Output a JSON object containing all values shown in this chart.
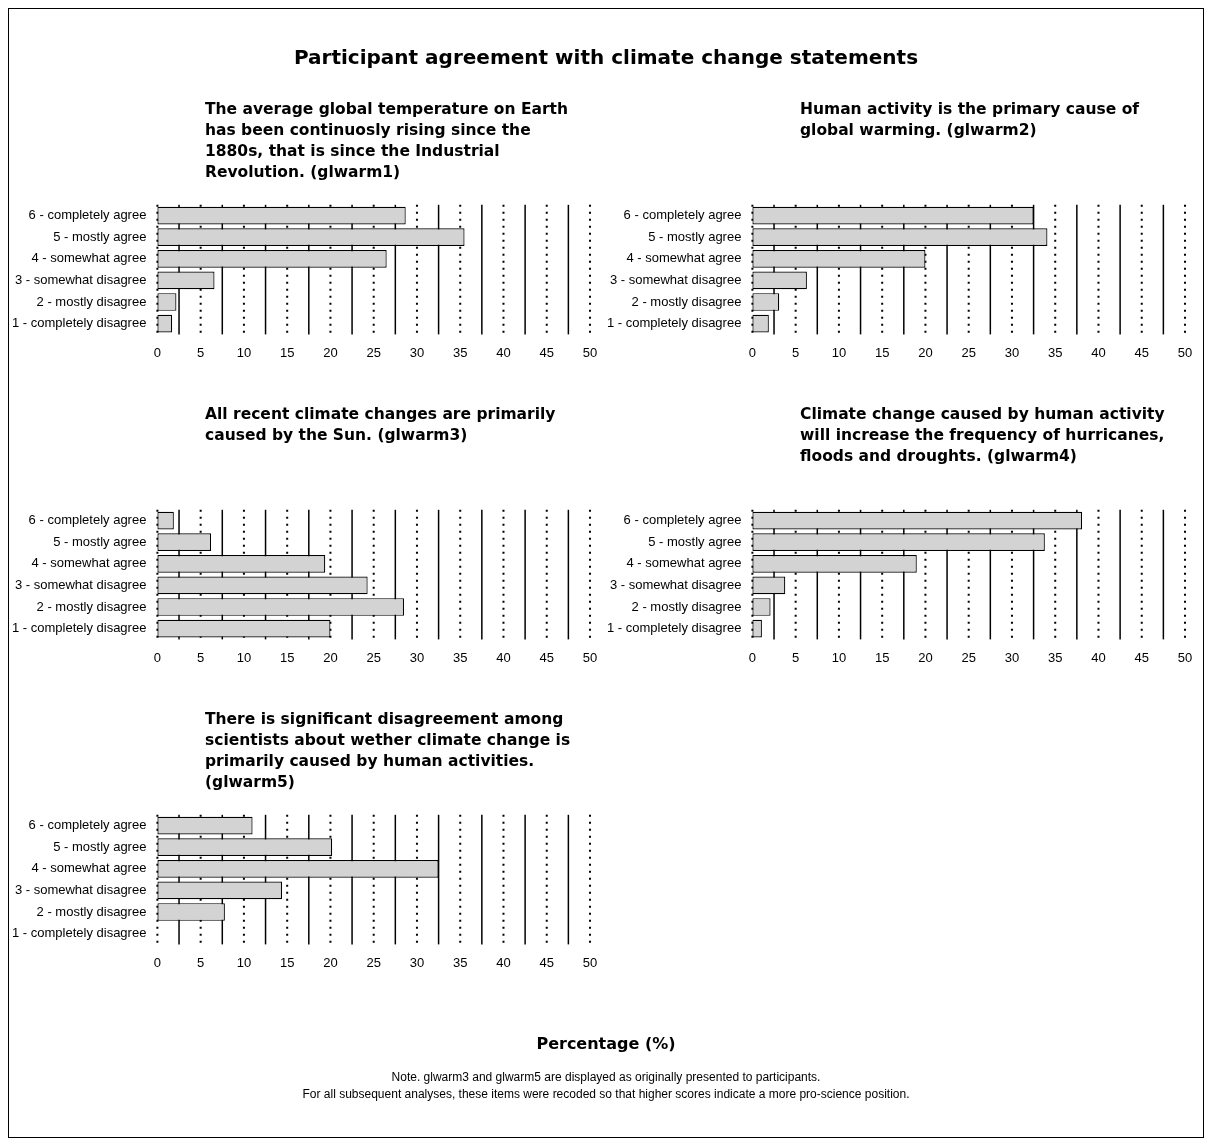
{
  "chart_data": [
    {
      "type": "other",
      "title": "Participant agreement with climate change statements"
    },
    {
      "type": "bar",
      "orientation": "horizontal",
      "title": "The average global temperature on Earth has been continuosly rising since the 1880s, that is since the Industrial Revolution. (glwarm1)",
      "categories": [
        "6 - completely agree",
        "5 - mostly agree",
        "4 - somewhat agree",
        "3 - somewhat disagree",
        "2 - mostly disagree",
        "1 - completely disagree"
      ],
      "values": [
        28.7,
        35.5,
        26.5,
        6.6,
        2.2,
        1.7
      ],
      "color": "#d3d3d3",
      "xlim": [
        0,
        50
      ],
      "xticks": [
        0,
        {
          "value": 2.5,
          "label": null
        },
        5,
        {
          "value": 7.5,
          "label": null
        },
        10,
        {
          "value": 12.5,
          "label": null
        },
        15,
        {
          "value": 17.5,
          "label": null
        },
        20,
        {
          "value": 22.5,
          "label": null
        },
        25,
        {
          "value": 27.5,
          "label": null
        },
        30,
        {
          "value": 32.5,
          "label": null
        },
        35,
        {
          "value": 37.5,
          "label": null
        },
        40,
        {
          "value": 42.5,
          "label": null
        },
        45,
        {
          "value": 47.5,
          "label": null
        },
        50
      ],
      "grid": "x"
    },
    {
      "type": "bar",
      "orientation": "horizontal",
      "title": "Human activity is the primary cause of global warming. (glwarm2)",
      "categories": [
        "6 - completely agree",
        "5 - mostly agree",
        "4 - somewhat agree",
        "3 - somewhat disagree",
        "2 - mostly disagree",
        "1 - completely disagree"
      ],
      "values": [
        32.5,
        34.1,
        20.0,
        6.3,
        3.1,
        1.9
      ],
      "color": "#d3d3d3",
      "xlim": [
        0,
        50
      ],
      "xticks": [
        0,
        {
          "value": 2.5,
          "label": null
        },
        5,
        {
          "value": 7.5,
          "label": null
        },
        10,
        {
          "value": 12.5,
          "label": null
        },
        15,
        {
          "value": 17.5,
          "label": null
        },
        20,
        {
          "value": 22.5,
          "label": null
        },
        25,
        {
          "value": 27.5,
          "label": null
        },
        30,
        {
          "value": 32.5,
          "label": null
        },
        35,
        {
          "value": 37.5,
          "label": null
        },
        40,
        {
          "value": 42.5,
          "label": null
        },
        45,
        {
          "value": 47.5,
          "label": null
        },
        50
      ],
      "grid": "x"
    },
    {
      "type": "bar",
      "orientation": "horizontal",
      "title": "All recent climate changes are primarily caused by the Sun. (glwarm3)",
      "categories": [
        "6 - completely agree",
        "5 - mostly agree",
        "4 - somewhat agree",
        "3 - somewhat disagree",
        "2 - mostly disagree",
        "1 - completely disagree"
      ],
      "values": [
        1.9,
        6.2,
        19.4,
        24.3,
        28.5,
        20.0
      ],
      "color": "#d3d3d3",
      "xlim": [
        0,
        50
      ],
      "xticks": [
        0,
        {
          "value": 2.5,
          "label": null
        },
        5,
        {
          "value": 7.5,
          "label": null
        },
        10,
        {
          "value": 12.5,
          "label": null
        },
        15,
        {
          "value": 17.5,
          "label": null
        },
        20,
        {
          "value": 22.5,
          "label": null
        },
        25,
        {
          "value": 27.5,
          "label": null
        },
        30,
        {
          "value": 32.5,
          "label": null
        },
        35,
        {
          "value": 37.5,
          "label": null
        },
        40,
        {
          "value": 42.5,
          "label": null
        },
        45,
        {
          "value": 47.5,
          "label": null
        },
        50
      ],
      "grid": "x"
    },
    {
      "type": "bar",
      "orientation": "horizontal",
      "title": "Climate change caused by human activity will increase the frequency of hurricanes, floods and droughts. (glwarm4)",
      "categories": [
        "6 - completely agree",
        "5 - mostly agree",
        "4 - somewhat agree",
        "3 - somewhat disagree",
        "2 - mostly disagree",
        "1 - completely disagree"
      ],
      "values": [
        38.1,
        33.8,
        19.0,
        3.8,
        2.1,
        1.1
      ],
      "color": "#d3d3d3",
      "xlim": [
        0,
        50
      ],
      "xticks": [
        0,
        {
          "value": 2.5,
          "label": null
        },
        5,
        {
          "value": 7.5,
          "label": null
        },
        10,
        {
          "value": 12.5,
          "label": null
        },
        15,
        {
          "value": 17.5,
          "label": null
        },
        20,
        {
          "value": 22.5,
          "label": null
        },
        25,
        {
          "value": 27.5,
          "label": null
        },
        30,
        {
          "value": 32.5,
          "label": null
        },
        35,
        {
          "value": 37.5,
          "label": null
        },
        40,
        {
          "value": 42.5,
          "label": null
        },
        45,
        {
          "value": 47.5,
          "label": null
        },
        50
      ],
      "grid": "x"
    },
    {
      "type": "bar",
      "orientation": "horizontal",
      "title": "There is significant disagreement among scientists about wether climate change is primarily caused by human activities. (glwarm5)",
      "categories": [
        "6 - completely agree",
        "5 - mostly agree",
        "4 - somewhat agree",
        "3 - somewhat disagree",
        "2 - mostly disagree",
        "1 - completely disagree"
      ],
      "values": [
        11.0,
        20.2,
        32.5,
        14.4,
        7.8,
        0
      ],
      "color": "#d3d3d3",
      "xlim": [
        0,
        50
      ],
      "xticks": [
        0,
        {
          "value": 2.5,
          "label": null
        },
        5,
        {
          "value": 7.5,
          "label": null
        },
        10,
        {
          "value": 12.5,
          "label": null
        },
        15,
        {
          "value": 17.5,
          "label": null
        },
        20,
        {
          "value": 22.5,
          "label": null
        },
        25,
        {
          "value": 27.5,
          "label": null
        },
        30,
        {
          "value": 32.5,
          "label": null
        },
        35,
        {
          "value": 37.5,
          "label": null
        },
        40,
        {
          "value": 42.5,
          "label": null
        },
        45,
        {
          "value": 47.5,
          "label": null
        },
        50
      ],
      "grid": "x"
    },
    {
      "type": "other",
      "xlabel": "Percentage (%)",
      "annotations": [
        "Note. glwarm3 and glwarm5 are displayed as originally presented to participants.",
        "For all subsequent analyses, these items were recoded so that higher scores indicate a more pro-science position."
      ]
    }
  ]
}
